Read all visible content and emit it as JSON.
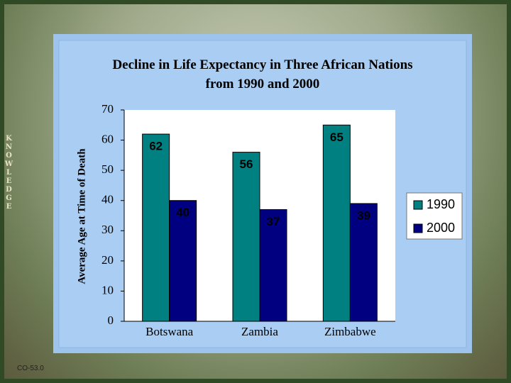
{
  "slide": {
    "side_label": "KNOWLEDGE",
    "footer": "CO-53.0"
  },
  "chart_data": {
    "type": "bar",
    "title": "Decline in Life Expectancy in Three African Nations from 1990 and 2000",
    "y_label": "Average Age at Time of Death",
    "categories": [
      "Botswana",
      "Zambia",
      "Zimbabwe"
    ],
    "series": [
      {
        "name": "1990",
        "color": "#008080",
        "values": [
          62,
          56,
          65
        ]
      },
      {
        "name": "2000",
        "color": "#000080",
        "values": [
          40,
          37,
          39
        ]
      }
    ],
    "ylim": [
      0,
      70
    ],
    "yticks": [
      0,
      10,
      20,
      30,
      40,
      50,
      60,
      70
    ],
    "grid": false,
    "legend": "right"
  }
}
